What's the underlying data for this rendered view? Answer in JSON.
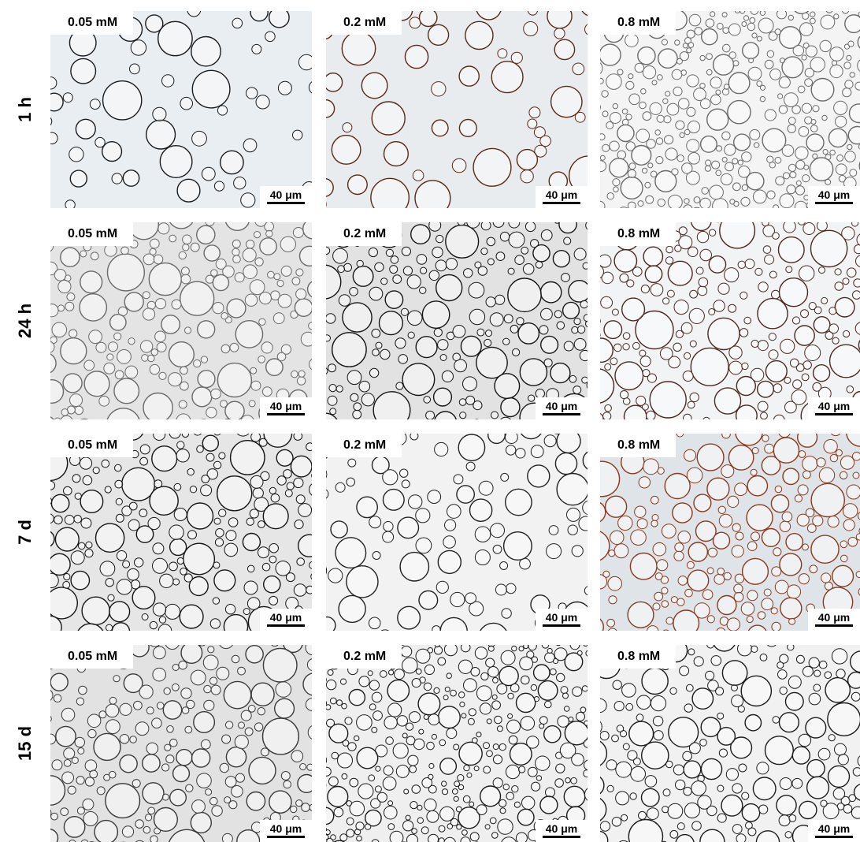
{
  "figure": {
    "rows": [
      {
        "label": "1 h"
      },
      {
        "label": "24 h"
      },
      {
        "label": "7 d"
      },
      {
        "label": "15 d"
      }
    ],
    "columns": [
      {
        "label": "0.05 mM"
      },
      {
        "label": "0.2 mM"
      },
      {
        "label": "0.8 mM"
      }
    ],
    "scale_bar": "40 μm",
    "panels": [
      [
        {
          "label": "0.05 mM",
          "bg": "#e9eef2",
          "edge": "#1a1c20",
          "density": "sparse"
        },
        {
          "label": "0.2 mM",
          "bg": "#e8ecef",
          "edge": "#5a2a18",
          "density": "sparse"
        },
        {
          "label": "0.8 mM",
          "bg": "#f4f4f4",
          "edge": "#6a6a6a",
          "density": "dense-small"
        }
      ],
      [
        {
          "label": "0.05 mM",
          "bg": "#e4e4e4",
          "edge": "#6a6a6a",
          "density": "dense"
        },
        {
          "label": "0.2 mM",
          "bg": "#e2e2e2",
          "edge": "#161616",
          "density": "dense"
        },
        {
          "label": "0.8 mM",
          "bg": "#f1f3f5",
          "edge": "#4a2a22",
          "density": "dense"
        }
      ],
      [
        {
          "label": "0.05 mM",
          "bg": "#e6e6e6",
          "edge": "#161616",
          "density": "dense"
        },
        {
          "label": "0.2 mM",
          "bg": "#f2f2f2",
          "edge": "#222222",
          "density": "medium"
        },
        {
          "label": "0.8 mM",
          "bg": "#dfe4e8",
          "edge": "#8a3a1e",
          "density": "dense"
        }
      ],
      [
        {
          "label": "0.05 mM",
          "bg": "#e2e2e2",
          "edge": "#3a3a3a",
          "density": "dense"
        },
        {
          "label": "0.2 mM",
          "bg": "#efefef",
          "edge": "#1c1c1c",
          "density": "dense-small"
        },
        {
          "label": "0.8 mM",
          "bg": "#f1f1f1",
          "edge": "#1c1c1c",
          "density": "dense"
        }
      ]
    ]
  }
}
